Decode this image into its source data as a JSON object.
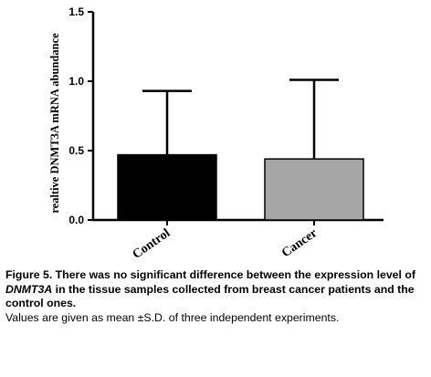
{
  "chart_data": {
    "type": "bar",
    "categories": [
      "Control",
      "Cancer"
    ],
    "values": [
      0.47,
      0.44
    ],
    "error_bars": [
      0.46,
      0.57
    ],
    "bar_colors": [
      "#000000",
      "#a6a6a6"
    ],
    "ylabel": "realtive DNMT3A mRNA abundance",
    "ylim": [
      0,
      1.5
    ],
    "yticks": [
      "0.0",
      "0.5",
      "1.0",
      "1.5"
    ],
    "grid": false
  },
  "caption": {
    "figure_label": "Figure 5.",
    "title_part1": "There was no significant difference between the expression level of",
    "gene": "DNMT3A",
    "title_part2": "in the tissue samples collected from breast cancer patients and the control ones.",
    "note": "Values are given as mean ±S.D. of three independent experiments."
  }
}
